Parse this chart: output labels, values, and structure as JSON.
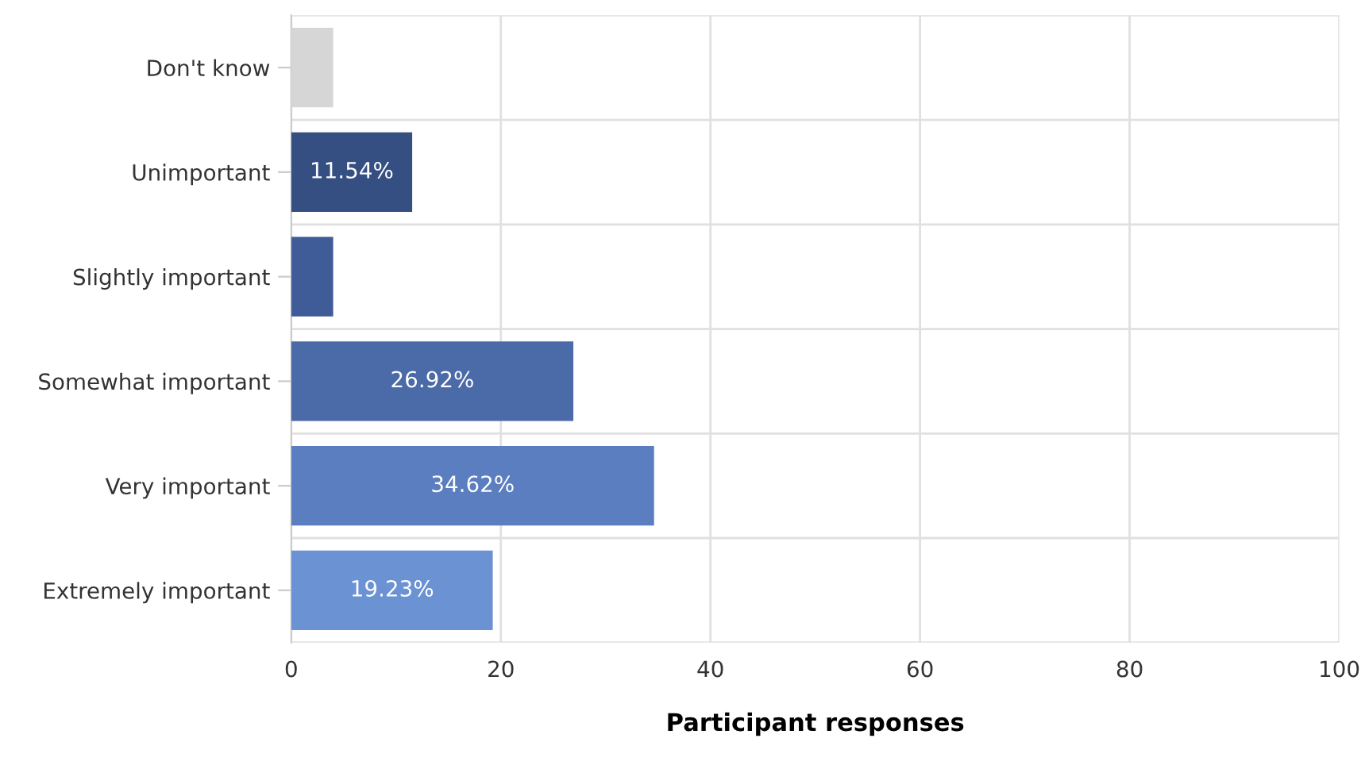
{
  "chart_data": {
    "type": "bar",
    "orientation": "horizontal",
    "categories": [
      "Don't know",
      "Unimportant",
      "Slightly important",
      "Somewhat important",
      "Very important",
      "Extremely important"
    ],
    "values": [
      4,
      11.54,
      4,
      26.92,
      34.62,
      19.23
    ],
    "colors": [
      "#d6d6d6",
      "#364f82",
      "#3f5c98",
      "#4b6aa8",
      "#5a7ebf",
      "#6b92d2"
    ],
    "value_labels": [
      null,
      "11.54%",
      null,
      "26.92%",
      "34.62%",
      "19.23%"
    ],
    "xlabel": "Participant responses",
    "xlim": [
      0,
      100
    ],
    "xticks": [
      0,
      20,
      40,
      60,
      80,
      100
    ],
    "grid": true,
    "legend": false
  }
}
